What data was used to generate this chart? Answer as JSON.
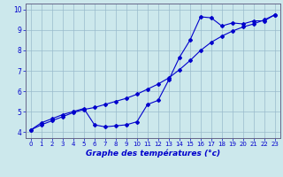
{
  "line1_x": [
    0,
    1,
    2,
    3,
    4,
    5,
    6,
    7,
    8,
    9,
    10,
    11,
    12,
    13,
    14,
    15,
    16,
    17,
    18,
    19,
    20,
    21,
    22,
    23
  ],
  "line1_y": [
    4.1,
    4.35,
    4.55,
    4.75,
    4.95,
    5.1,
    5.2,
    5.35,
    5.5,
    5.65,
    5.85,
    6.1,
    6.35,
    6.65,
    7.05,
    7.5,
    8.0,
    8.4,
    8.7,
    8.95,
    9.15,
    9.3,
    9.5,
    9.75
  ],
  "line2_x": [
    0,
    1,
    2,
    3,
    4,
    5,
    6,
    7,
    8,
    9,
    10,
    11,
    12,
    13,
    14,
    15,
    16,
    17,
    18,
    19,
    20,
    21,
    22,
    23
  ],
  "line2_y": [
    4.1,
    4.45,
    4.65,
    4.85,
    5.0,
    5.15,
    4.35,
    4.25,
    4.3,
    4.35,
    4.5,
    5.35,
    5.55,
    6.55,
    7.65,
    8.5,
    9.65,
    9.6,
    9.2,
    9.35,
    9.3,
    9.45,
    9.45,
    9.75
  ],
  "line_color": "#0000cc",
  "bg_color": "#cce8ec",
  "grid_color": "#99bbcc",
  "axis_bg": "#cce8ec",
  "xlabel": "Graphe des températures (°c)",
  "xlim": [
    -0.5,
    23.5
  ],
  "ylim": [
    3.7,
    10.3
  ],
  "yticks": [
    4,
    5,
    6,
    7,
    8,
    9,
    10
  ],
  "xticks": [
    0,
    1,
    2,
    3,
    4,
    5,
    6,
    7,
    8,
    9,
    10,
    11,
    12,
    13,
    14,
    15,
    16,
    17,
    18,
    19,
    20,
    21,
    22,
    23
  ],
  "tick_fontsize": 5.0,
  "xlabel_fontsize": 6.5
}
